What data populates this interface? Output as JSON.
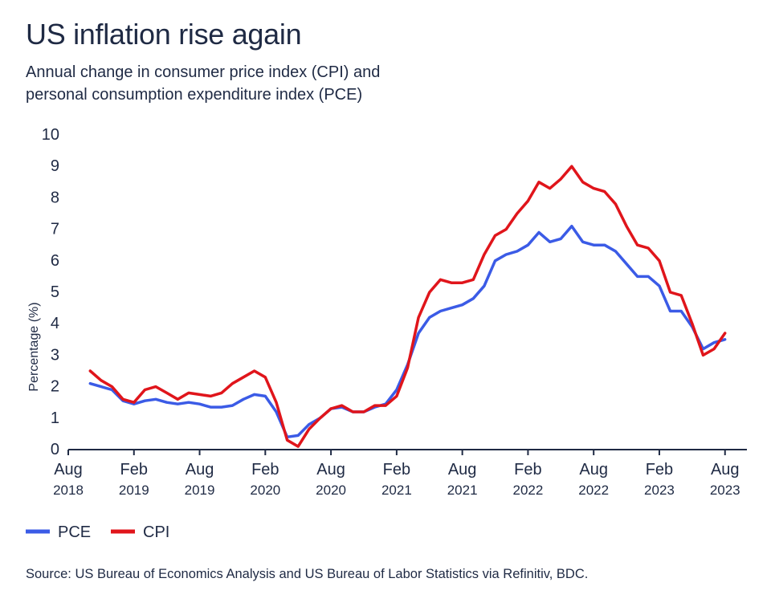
{
  "title": "US inflation rise again",
  "subtitle_line1": "Annual change in consumer price index (CPI) and",
  "subtitle_line2": "personal consumption expenditure index (PCE)",
  "source": "Source: US Bureau of Economics Analysis and US Bureau of Labor Statistics via Refinitiv, BDC.",
  "colors": {
    "pce": "#3b5be6",
    "cpi": "#e0151b",
    "axis": "#1f2a44"
  },
  "chart_data": {
    "type": "line",
    "ylabel": "Percentage (%)",
    "xlabel": "",
    "ylim": [
      0,
      10
    ],
    "yticks": [
      0,
      1,
      2,
      3,
      4,
      5,
      6,
      7,
      8,
      9,
      10
    ],
    "grid": false,
    "legend_position": "bottom-left",
    "x_tick_labels": [
      {
        "month": "Aug",
        "year": "2018",
        "date": "2018-08"
      },
      {
        "month": "Feb",
        "year": "2019",
        "date": "2019-02"
      },
      {
        "month": "Aug",
        "year": "2019",
        "date": "2019-08"
      },
      {
        "month": "Feb",
        "year": "2020",
        "date": "2020-02"
      },
      {
        "month": "Aug",
        "year": "2020",
        "date": "2020-08"
      },
      {
        "month": "Feb",
        "year": "2021",
        "date": "2021-02"
      },
      {
        "month": "Aug",
        "year": "2021",
        "date": "2021-08"
      },
      {
        "month": "Feb",
        "year": "2022",
        "date": "2022-02"
      },
      {
        "month": "Aug",
        "year": "2022",
        "date": "2022-08"
      },
      {
        "month": "Feb",
        "year": "2023",
        "date": "2023-02"
      },
      {
        "month": "Aug",
        "year": "2023",
        "date": "2023-08"
      }
    ],
    "x": [
      "2018-10",
      "2018-11",
      "2018-12",
      "2019-01",
      "2019-02",
      "2019-03",
      "2019-04",
      "2019-05",
      "2019-06",
      "2019-07",
      "2019-08",
      "2019-09",
      "2019-10",
      "2019-11",
      "2019-12",
      "2020-01",
      "2020-02",
      "2020-03",
      "2020-04",
      "2020-05",
      "2020-06",
      "2020-07",
      "2020-08",
      "2020-09",
      "2020-10",
      "2020-11",
      "2020-12",
      "2021-01",
      "2021-02",
      "2021-03",
      "2021-04",
      "2021-05",
      "2021-06",
      "2021-07",
      "2021-08",
      "2021-09",
      "2021-10",
      "2021-11",
      "2021-12",
      "2022-01",
      "2022-02",
      "2022-03",
      "2022-04",
      "2022-05",
      "2022-06",
      "2022-07",
      "2022-08",
      "2022-09",
      "2022-10",
      "2022-11",
      "2022-12",
      "2023-01",
      "2023-02",
      "2023-03",
      "2023-04",
      "2023-05",
      "2023-06",
      "2023-07",
      "2023-08"
    ],
    "series": [
      {
        "name": "PCE",
        "color": "#3b5be6",
        "values": [
          2.1,
          2.0,
          1.9,
          1.55,
          1.45,
          1.55,
          1.6,
          1.5,
          1.45,
          1.5,
          1.45,
          1.35,
          1.35,
          1.4,
          1.6,
          1.75,
          1.7,
          1.2,
          0.4,
          0.45,
          0.8,
          1.0,
          1.3,
          1.35,
          1.2,
          1.2,
          1.35,
          1.45,
          1.9,
          2.7,
          3.7,
          4.2,
          4.4,
          4.5,
          4.6,
          4.8,
          5.2,
          6.0,
          6.2,
          6.3,
          6.5,
          6.9,
          6.6,
          6.7,
          7.1,
          6.6,
          6.5,
          6.5,
          6.3,
          5.9,
          5.5,
          5.5,
          5.2,
          4.4,
          4.4,
          3.9,
          3.2,
          3.4,
          3.5
        ]
      },
      {
        "name": "CPI",
        "color": "#e0151b",
        "values": [
          2.5,
          2.2,
          2.0,
          1.6,
          1.5,
          1.9,
          2.0,
          1.8,
          1.6,
          1.8,
          1.75,
          1.7,
          1.8,
          2.1,
          2.3,
          2.5,
          2.3,
          1.5,
          0.3,
          0.1,
          0.65,
          1.0,
          1.3,
          1.4,
          1.2,
          1.2,
          1.4,
          1.4,
          1.7,
          2.6,
          4.2,
          5.0,
          5.4,
          5.3,
          5.3,
          5.4,
          6.2,
          6.8,
          7.0,
          7.5,
          7.9,
          8.5,
          8.3,
          8.6,
          9.0,
          8.5,
          8.3,
          8.2,
          7.8,
          7.1,
          6.5,
          6.4,
          6.0,
          5.0,
          4.9,
          4.0,
          3.0,
          3.2,
          3.7
        ]
      }
    ]
  }
}
